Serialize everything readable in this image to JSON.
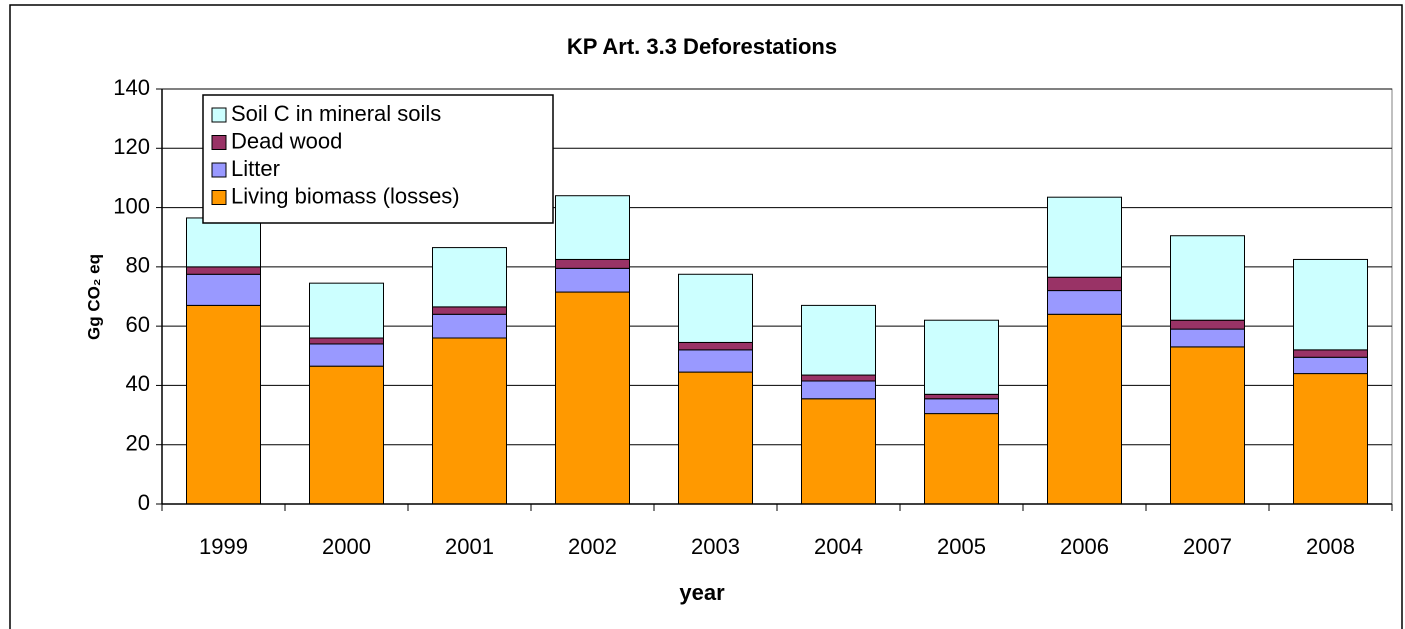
{
  "chart_data": {
    "type": "stacked_bar",
    "title": "KP Art. 3.3 Deforestations",
    "x_label": "year",
    "y_label": "Gg CO₂ eq",
    "categories": [
      "1999",
      "2000",
      "2001",
      "2002",
      "2003",
      "2004",
      "2005",
      "2006",
      "2007",
      "2008"
    ],
    "series": [
      {
        "name": "Living biomass (losses)",
        "color": "#ff9900",
        "values": [
          67,
          46.5,
          56,
          71.5,
          44.5,
          35.5,
          30.5,
          64,
          53,
          44
        ]
      },
      {
        "name": "Litter",
        "color": "#9999ff",
        "values": [
          10.5,
          7.5,
          8,
          8,
          7.5,
          6,
          5,
          8,
          6,
          5.5
        ]
      },
      {
        "name": "Dead wood",
        "color": "#993366",
        "values": [
          2.5,
          2,
          2.5,
          3,
          2.5,
          2,
          1.5,
          4.5,
          3,
          2.5
        ]
      },
      {
        "name": "Soil C in mineral soils",
        "color": "#ccffff",
        "values": [
          16.5,
          18.5,
          20,
          21.5,
          23,
          23.5,
          25,
          27,
          28.5,
          30.5
        ]
      }
    ],
    "ylim": [
      0,
      140
    ],
    "yticks": [
      0,
      20,
      40,
      60,
      80,
      100,
      120,
      140
    ],
    "grid": true,
    "legend": "upper left"
  }
}
